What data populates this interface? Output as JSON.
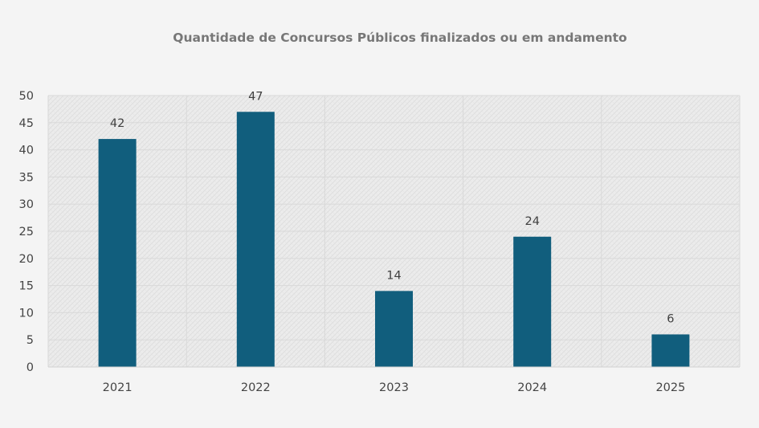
{
  "chart_data": {
    "type": "bar",
    "title": "Quantidade de Concursos Públicos finalizados ou em andamento",
    "categories": [
      "2021",
      "2022",
      "2023",
      "2024",
      "2025"
    ],
    "values": [
      42,
      47,
      14,
      24,
      6
    ],
    "data_labels": [
      "42",
      "47",
      "14",
      "24",
      "6"
    ],
    "y_ticks": [
      "0",
      "5",
      "10",
      "15",
      "20",
      "25",
      "30",
      "35",
      "40",
      "45",
      "50"
    ],
    "ylim": [
      0,
      50
    ],
    "xlabel": "",
    "ylabel": "",
    "grid": true,
    "legend": "none",
    "colors": {
      "bar": "#115e7d",
      "background": "#f4f4f4",
      "plot_area": "#e9e9e9",
      "gridline": "#d9d9d9"
    }
  }
}
